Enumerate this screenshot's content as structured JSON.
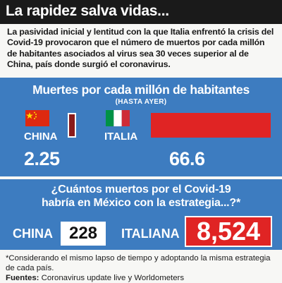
{
  "header": {
    "title": "La rapidez salva vidas..."
  },
  "intro": {
    "text": "La pasividad inicial y lentitud con la que Italia enfrentó la crisis del Covid-19 provocaron que el número de muertos por cada millón de habitantes asociados al virus sea 30 veces superior al de China, país donde surgió el coronavirus."
  },
  "colors": {
    "accent_blue": "#3d7cc0",
    "bar_red": "#e02424",
    "header_black": "#1a1a1a"
  },
  "chart_data": {
    "type": "bar",
    "title": "Muertes por cada millón de habitantes",
    "subtitle": "(HASTA AYER)",
    "categories": [
      "CHINA",
      "ITALIA"
    ],
    "values": [
      2.25,
      66.6
    ],
    "value_labels": [
      "2.25",
      "66.6"
    ],
    "icons": [
      "china-flag-icon",
      "italy-flag-icon"
    ]
  },
  "estimate": {
    "question_line1": "¿Cuántos muertos por el Covid-19",
    "question_line2": "habría en México con la estrategia...?*",
    "china_label": "CHINA",
    "china_value": "228",
    "italy_label": "ITALIANA",
    "italy_value": "8,524"
  },
  "footnote": {
    "note": "*Considerando el mismo lapso de tiempo y adoptando la misma estrategia de cada país.",
    "sources_label": "Fuentes:",
    "sources_text": "Coronavirus update live y Worldometers"
  }
}
